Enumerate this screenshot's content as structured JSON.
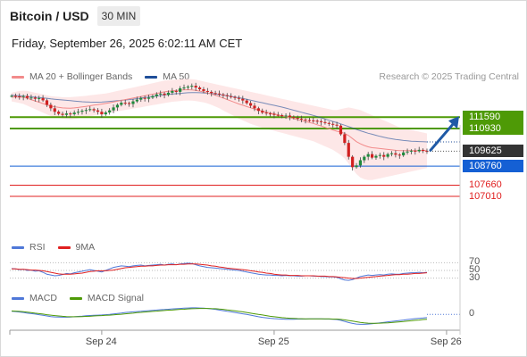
{
  "header": {
    "title": "Bitcoin / USD",
    "interval": "30 MIN",
    "datetime": "Friday, September 26, 2025 6:02:11 AM CET"
  },
  "legend_main": [
    {
      "label": "MA 20 + Bollinger Bands",
      "color": "#f28b8b"
    },
    {
      "label": "MA 50",
      "color": "#1f4e99"
    }
  ],
  "credit": "Research © 2025 Trading Central",
  "legend_rsi": [
    {
      "label": "RSI",
      "color": "#4f78d8"
    },
    {
      "label": "9MA",
      "color": "#e02020"
    }
  ],
  "legend_macd": [
    {
      "label": "MACD",
      "color": "#4f78d8"
    },
    {
      "label": "MACD Signal",
      "color": "#4e9a06"
    }
  ],
  "colors": {
    "resistance": "#4e9a06",
    "support": "#1560d4",
    "extra_support": "#e02020",
    "bollinger_fill": "#fde3e3",
    "ma50": "#1f4e99",
    "ma20": "#f28b8b",
    "arrow": "#1f5aa6",
    "candle_up": "#1e8a3c",
    "candle_down": "#d12020"
  },
  "chart_data": {
    "type": "candlestick",
    "y_unit": "USD",
    "price_range": [
      106600,
      113200
    ],
    "price_levels": [
      {
        "label": "111590",
        "value": 111590,
        "kind": "resistance"
      },
      {
        "label": "110930",
        "value": 110930,
        "kind": "resistance"
      },
      {
        "label": "109625",
        "value": 109625,
        "kind": "current"
      },
      {
        "label": "108760",
        "value": 108760,
        "kind": "pivot"
      },
      {
        "label": "107660",
        "value": 107660,
        "kind": "support"
      },
      {
        "label": "107010",
        "value": 107010,
        "kind": "support"
      }
    ],
    "x_ticks": [
      "Sep 24",
      "Sep 25",
      "Sep 26"
    ],
    "x_tick_index": [
      23,
      67,
      111
    ],
    "series_close": [
      112820,
      112790,
      112760,
      112810,
      112700,
      112720,
      112650,
      112690,
      112560,
      112300,
      112100,
      111900,
      111780,
      111720,
      111800,
      111760,
      111850,
      111900,
      111960,
      112000,
      112050,
      111980,
      111900,
      111750,
      111860,
      111980,
      112150,
      112300,
      112420,
      112400,
      112350,
      112500,
      112600,
      112700,
      112650,
      112720,
      112800,
      112900,
      112950,
      112870,
      113000,
      113100,
      113050,
      113250,
      113300,
      113350,
      113400,
      113300,
      113200,
      113100,
      113050,
      112980,
      112950,
      112900,
      112850,
      112800,
      112750,
      112700,
      112650,
      112550,
      112400,
      112250,
      112100,
      111950,
      111850,
      111800,
      111780,
      111720,
      111700,
      111650,
      111680,
      111600,
      111550,
      111500,
      111450,
      111420,
      111400,
      111380,
      111350,
      111300,
      111250,
      111200,
      111150,
      111100,
      110600,
      110100,
      109300,
      108700,
      108800,
      109100,
      109300,
      109450,
      109250,
      109350,
      109400,
      109300,
      109450,
      109500,
      109420,
      109380,
      109550,
      109600,
      109650,
      109620,
      109700,
      109640,
      109625
    ],
    "ma50": [
      112850,
      112840,
      112820,
      112800,
      112780,
      112760,
      112740,
      112720,
      112700,
      112680,
      112650,
      112620,
      112600,
      112580,
      112560,
      112540,
      112520,
      112500,
      112480,
      112470,
      112460,
      112450,
      112450,
      112460,
      112480,
      112500,
      112520,
      112540,
      112560,
      112580,
      112600,
      112630,
      112660,
      112690,
      112720,
      112750,
      112780,
      112810,
      112840,
      112870,
      112900,
      112920,
      112940,
      112960,
      112980,
      113000,
      113010,
      113010,
      113000,
      112990,
      112970,
      112950,
      112920,
      112890,
      112860,
      112830,
      112790,
      112750,
      112710,
      112670,
      112620,
      112570,
      112520,
      112470,
      112420,
      112370,
      112320,
      112270,
      112220,
      112170,
      112110,
      112050,
      111990,
      111930,
      111870,
      111810,
      111750,
      111690,
      111620,
      111550,
      111480,
      111410,
      111340,
      111270,
      111200,
      111120,
      111040,
      110960,
      110880,
      110800,
      110730,
      110660,
      110600,
      110540,
      110480,
      110430,
      110380,
      110340,
      110300,
      110270,
      110240,
      110220,
      110200,
      110190,
      110180,
      110170,
      110160
    ],
    "bollinger_upper": [
      113000,
      113050,
      113100,
      113120,
      113100,
      113050,
      113000,
      112950,
      112900,
      112850,
      112800,
      112780,
      112760,
      112740,
      112740,
      112740,
      112760,
      112780,
      112800,
      112820,
      112850,
      112880,
      112900,
      112930,
      112960,
      113000,
      113050,
      113100,
      113150,
      113200,
      113250,
      113300,
      113350,
      113400,
      113450,
      113500,
      113550,
      113600,
      113650,
      113700,
      113720,
      113740,
      113760,
      113780,
      113800,
      113800,
      113780,
      113750,
      113700,
      113650,
      113600,
      113550,
      113500,
      113450,
      113400,
      113350,
      113300,
      113250,
      113200,
      113150,
      113100,
      113050,
      113000,
      112950,
      112900,
      112850,
      112800,
      112750,
      112700,
      112650,
      112600,
      112550,
      112500,
      112450,
      112400,
      112350,
      112300,
      112250,
      112200,
      112150,
      112100,
      112050,
      112000,
      112000,
      112050,
      112100,
      112150,
      112100,
      112050,
      112000,
      111900,
      111800,
      111700,
      111600,
      111500,
      111400,
      111300,
      111200,
      111100,
      111000,
      110950,
      110900,
      110850,
      110800,
      110750,
      110700,
      110650
    ],
    "bollinger_lower": [
      112500,
      112450,
      112400,
      112350,
      112250,
      112150,
      112050,
      111950,
      111850,
      111750,
      111650,
      111600,
      111550,
      111500,
      111480,
      111460,
      111480,
      111520,
      111560,
      111600,
      111640,
      111680,
      111720,
      111760,
      111800,
      111840,
      111880,
      111920,
      111960,
      112000,
      112040,
      112080,
      112120,
      112160,
      112200,
      112240,
      112280,
      112320,
      112360,
      112400,
      112440,
      112480,
      112500,
      112520,
      112540,
      112550,
      112540,
      112520,
      112480,
      112440,
      112380,
      112300,
      112200,
      112100,
      111980,
      111860,
      111740,
      111620,
      111500,
      111400,
      111300,
      111200,
      111120,
      111050,
      110980,
      110920,
      110860,
      110800,
      110740,
      110680,
      110620,
      110560,
      110500,
      110440,
      110380,
      110320,
      110260,
      110200,
      110100,
      110000,
      109900,
      109800,
      109700,
      109550,
      109400,
      109200,
      108900,
      108600,
      108300,
      108100,
      108000,
      107950,
      107950,
      108000,
      108050,
      108100,
      108150,
      108200,
      108250,
      108300,
      108350,
      108400,
      108450,
      108500,
      108550,
      108600,
      108650
    ],
    "rsi": [
      55,
      54,
      52,
      53,
      50,
      51,
      48,
      49,
      45,
      40,
      38,
      36,
      37,
      39,
      42,
      41,
      44,
      46,
      48,
      50,
      52,
      50,
      48,
      46,
      50,
      54,
      58,
      60,
      62,
      61,
      60,
      62,
      63,
      64,
      62,
      63,
      64,
      65,
      66,
      64,
      66,
      67,
      65,
      67,
      68,
      69,
      68,
      65,
      62,
      60,
      58,
      57,
      56,
      55,
      54,
      53,
      52,
      51,
      50,
      48,
      46,
      44,
      42,
      40,
      39,
      38,
      38,
      37,
      37,
      36,
      37,
      36,
      36,
      35,
      35,
      36,
      36,
      35,
      35,
      34,
      34,
      33,
      33,
      32,
      28,
      25,
      24,
      26,
      30,
      34,
      36,
      38,
      37,
      38,
      39,
      38,
      40,
      41,
      40,
      40,
      42,
      43,
      44,
      44,
      45,
      44,
      45
    ],
    "rsi_9ma": [
      54,
      54,
      53,
      53,
      52,
      51,
      51,
      50,
      49,
      47,
      45,
      43,
      41,
      40,
      40,
      40,
      41,
      42,
      43,
      45,
      47,
      48,
      49,
      49,
      49,
      50,
      51,
      53,
      55,
      57,
      58,
      59,
      60,
      61,
      61,
      62,
      62,
      63,
      64,
      64,
      65,
      65,
      65,
      66,
      66,
      67,
      67,
      67,
      66,
      65,
      64,
      62,
      61,
      59,
      58,
      56,
      55,
      54,
      53,
      52,
      51,
      49,
      48,
      46,
      45,
      43,
      42,
      40,
      39,
      38,
      38,
      37,
      37,
      37,
      36,
      36,
      36,
      36,
      35,
      35,
      35,
      34,
      34,
      33,
      32,
      31,
      30,
      29,
      29,
      30,
      31,
      32,
      33,
      34,
      35,
      36,
      37,
      38,
      39,
      39,
      40,
      40,
      41,
      42,
      42,
      43,
      44
    ],
    "rsi_levels": [
      70,
      50,
      30
    ],
    "rsi_range": [
      15,
      85
    ],
    "macd": [
      0.2,
      0.18,
      0.15,
      0.12,
      0.08,
      0.05,
      0.02,
      -0.02,
      -0.06,
      -0.1,
      -0.14,
      -0.16,
      -0.17,
      -0.18,
      -0.18,
      -0.17,
      -0.15,
      -0.13,
      -0.11,
      -0.09,
      -0.07,
      -0.06,
      -0.05,
      -0.04,
      -0.02,
      0.0,
      0.03,
      0.06,
      0.09,
      0.12,
      0.14,
      0.16,
      0.18,
      0.2,
      0.22,
      0.24,
      0.26,
      0.28,
      0.3,
      0.31,
      0.33,
      0.35,
      0.36,
      0.38,
      0.4,
      0.41,
      0.42,
      0.42,
      0.41,
      0.4,
      0.38,
      0.35,
      0.32,
      0.28,
      0.24,
      0.2,
      0.16,
      0.12,
      0.08,
      0.04,
      0.0,
      -0.05,
      -0.1,
      -0.15,
      -0.19,
      -0.22,
      -0.25,
      -0.27,
      -0.29,
      -0.3,
      -0.31,
      -0.31,
      -0.31,
      -0.3,
      -0.3,
      -0.3,
      -0.29,
      -0.29,
      -0.29,
      -0.29,
      -0.3,
      -0.3,
      -0.31,
      -0.33,
      -0.38,
      -0.45,
      -0.52,
      -0.58,
      -0.62,
      -0.64,
      -0.64,
      -0.62,
      -0.6,
      -0.57,
      -0.54,
      -0.51,
      -0.48,
      -0.45,
      -0.42,
      -0.39,
      -0.36,
      -0.33,
      -0.3,
      -0.27,
      -0.25,
      -0.23,
      -0.21
    ],
    "macd_signal": [
      0.22,
      0.21,
      0.19,
      0.17,
      0.14,
      0.11,
      0.08,
      0.05,
      0.02,
      -0.02,
      -0.05,
      -0.08,
      -0.1,
      -0.12,
      -0.14,
      -0.15,
      -0.15,
      -0.15,
      -0.14,
      -0.13,
      -0.12,
      -0.1,
      -0.09,
      -0.08,
      -0.06,
      -0.05,
      -0.03,
      -0.01,
      0.01,
      0.04,
      0.06,
      0.08,
      0.11,
      0.13,
      0.15,
      0.17,
      0.19,
      0.21,
      0.23,
      0.25,
      0.27,
      0.28,
      0.3,
      0.32,
      0.33,
      0.35,
      0.36,
      0.37,
      0.38,
      0.38,
      0.38,
      0.37,
      0.36,
      0.34,
      0.32,
      0.29,
      0.26,
      0.23,
      0.19,
      0.16,
      0.12,
      0.08,
      0.04,
      0.0,
      -0.04,
      -0.08,
      -0.12,
      -0.15,
      -0.18,
      -0.21,
      -0.23,
      -0.25,
      -0.26,
      -0.27,
      -0.28,
      -0.29,
      -0.29,
      -0.29,
      -0.29,
      -0.29,
      -0.29,
      -0.29,
      -0.3,
      -0.3,
      -0.32,
      -0.35,
      -0.39,
      -0.43,
      -0.47,
      -0.51,
      -0.54,
      -0.56,
      -0.57,
      -0.57,
      -0.56,
      -0.55,
      -0.54,
      -0.52,
      -0.5,
      -0.48,
      -0.46,
      -0.43,
      -0.41,
      -0.38,
      -0.36,
      -0.33,
      -0.31
    ],
    "macd_zero_label": "0",
    "macd_range": [
      -0.9,
      0.7
    ],
    "rsi_tick_labels": [
      "70",
      "50",
      "30"
    ]
  }
}
